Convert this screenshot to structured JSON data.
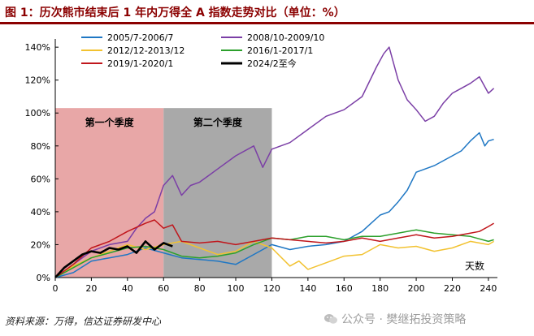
{
  "header": {
    "title": "图 1：历次熊市结束后 1 年内万得全 A 指数走势对比（单位：%）"
  },
  "footer": {
    "source": "资料来源：万得，信达证券研发中心"
  },
  "watermark": {
    "text": "公众号 · 樊继拓投资策略"
  },
  "chart_data": {
    "type": "line",
    "title": "历次熊市结束后 1 年内万得全 A 指数走势对比（单位：%）",
    "xlabel": "天数",
    "ylabel": "",
    "xlim": [
      0,
      245
    ],
    "ylim": [
      0,
      1.45
    ],
    "x_ticks": [
      0,
      20,
      40,
      60,
      80,
      100,
      120,
      140,
      160,
      180,
      200,
      220,
      240
    ],
    "y_ticks": [
      0,
      0.2,
      0.4,
      0.6,
      0.8,
      1.0,
      1.2,
      1.4
    ],
    "y_tick_labels": [
      "0%",
      "20%",
      "40%",
      "60%",
      "80%",
      "100%",
      "120%",
      "140%"
    ],
    "grid": false,
    "legend_position": "top",
    "regions": [
      {
        "label": "第一个季度",
        "x_start": 0,
        "x_end": 60,
        "y_top": 1.03,
        "color": "#e8a7a7"
      },
      {
        "label": "第二个季度",
        "x_start": 60,
        "x_end": 120,
        "y_top": 1.03,
        "color": "#a9a9a9"
      }
    ],
    "series": [
      {
        "name": "2005/7-2006/7",
        "color": "#1f77c4",
        "x": [
          0,
          10,
          20,
          30,
          40,
          50,
          60,
          70,
          80,
          90,
          100,
          110,
          120,
          130,
          140,
          150,
          160,
          170,
          175,
          180,
          185,
          190,
          195,
          200,
          210,
          220,
          225,
          230,
          235,
          238,
          240,
          243
        ],
        "values": [
          0,
          0.03,
          0.1,
          0.12,
          0.14,
          0.18,
          0.15,
          0.12,
          0.11,
          0.1,
          0.08,
          0.14,
          0.2,
          0.17,
          0.19,
          0.2,
          0.22,
          0.28,
          0.33,
          0.38,
          0.4,
          0.46,
          0.53,
          0.64,
          0.68,
          0.74,
          0.77,
          0.83,
          0.88,
          0.8,
          0.83,
          0.84
        ]
      },
      {
        "name": "2008/10-2009/10",
        "color": "#7b3fa6",
        "x": [
          0,
          10,
          20,
          30,
          40,
          45,
          50,
          55,
          60,
          65,
          70,
          75,
          80,
          90,
          100,
          110,
          115,
          120,
          130,
          140,
          150,
          160,
          170,
          178,
          182,
          185,
          190,
          195,
          200,
          205,
          210,
          215,
          220,
          225,
          230,
          235,
          240,
          243
        ],
        "values": [
          0,
          0.08,
          0.16,
          0.2,
          0.22,
          0.3,
          0.36,
          0.4,
          0.56,
          0.62,
          0.5,
          0.56,
          0.58,
          0.66,
          0.74,
          0.8,
          0.67,
          0.78,
          0.82,
          0.9,
          0.98,
          1.02,
          1.1,
          1.28,
          1.36,
          1.4,
          1.2,
          1.08,
          1.02,
          0.95,
          0.98,
          1.06,
          1.12,
          1.15,
          1.18,
          1.22,
          1.12,
          1.15
        ]
      },
      {
        "name": "2012/12-2013/12",
        "color": "#f2c230",
        "x": [
          0,
          10,
          20,
          30,
          40,
          50,
          60,
          70,
          80,
          90,
          100,
          110,
          120,
          130,
          135,
          140,
          150,
          160,
          170,
          180,
          190,
          200,
          210,
          220,
          230,
          240,
          243
        ],
        "values": [
          0,
          0.07,
          0.12,
          0.16,
          0.2,
          0.17,
          0.2,
          0.22,
          0.18,
          0.14,
          0.16,
          0.22,
          0.18,
          0.07,
          0.1,
          0.05,
          0.09,
          0.13,
          0.14,
          0.2,
          0.18,
          0.19,
          0.16,
          0.18,
          0.22,
          0.2,
          0.22
        ]
      },
      {
        "name": "2016/1-2017/1",
        "color": "#2ca02c",
        "x": [
          0,
          10,
          20,
          30,
          40,
          50,
          60,
          70,
          80,
          90,
          100,
          110,
          120,
          130,
          140,
          150,
          160,
          170,
          180,
          190,
          200,
          210,
          220,
          230,
          240,
          243
        ],
        "values": [
          0,
          0.06,
          0.12,
          0.15,
          0.18,
          0.19,
          0.17,
          0.13,
          0.12,
          0.13,
          0.15,
          0.2,
          0.24,
          0.23,
          0.25,
          0.25,
          0.23,
          0.25,
          0.25,
          0.27,
          0.29,
          0.27,
          0.26,
          0.25,
          0.22,
          0.23
        ]
      },
      {
        "name": "2019/1-2020/1",
        "color": "#c0161c",
        "x": [
          0,
          10,
          20,
          30,
          40,
          50,
          55,
          60,
          65,
          70,
          80,
          90,
          100,
          110,
          120,
          130,
          140,
          150,
          160,
          170,
          180,
          190,
          200,
          210,
          220,
          230,
          235,
          240,
          243
        ],
        "values": [
          0,
          0.08,
          0.18,
          0.22,
          0.28,
          0.33,
          0.35,
          0.3,
          0.32,
          0.22,
          0.21,
          0.22,
          0.2,
          0.22,
          0.24,
          0.23,
          0.22,
          0.21,
          0.22,
          0.24,
          0.22,
          0.24,
          0.26,
          0.24,
          0.25,
          0.27,
          0.28,
          0.31,
          0.33
        ]
      },
      {
        "name": "2024/2至今",
        "color": "#000000",
        "bold": true,
        "x": [
          0,
          5,
          10,
          15,
          20,
          25,
          30,
          35,
          40,
          45,
          50,
          55,
          60,
          65
        ],
        "values": [
          0,
          0.06,
          0.1,
          0.14,
          0.16,
          0.15,
          0.18,
          0.17,
          0.19,
          0.15,
          0.22,
          0.17,
          0.21,
          0.19
        ]
      }
    ]
  }
}
